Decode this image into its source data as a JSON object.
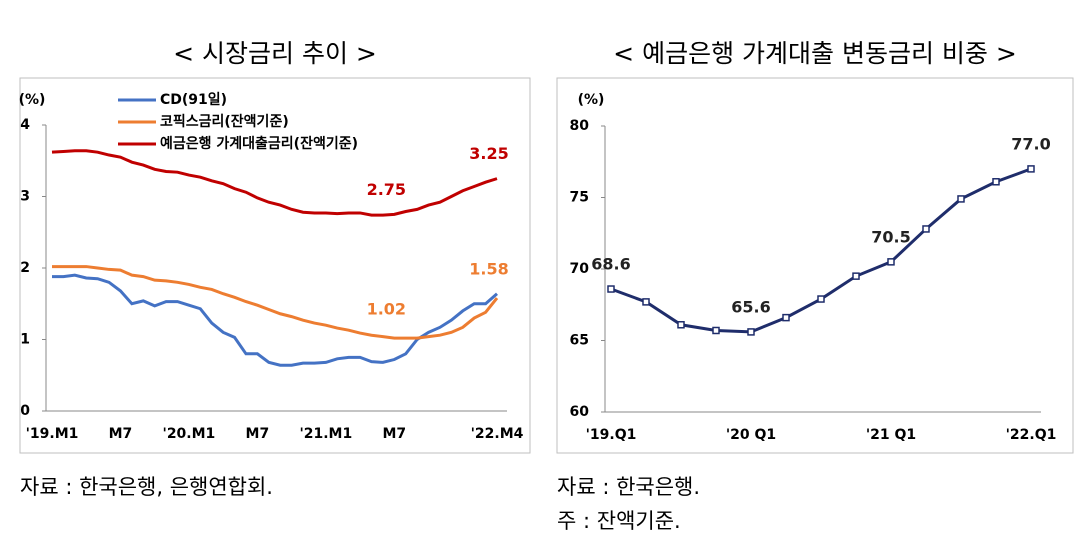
{
  "chart_data": [
    {
      "type": "line",
      "title": "< 시장금리 추이 >",
      "y_label": "(%)",
      "categories": [
        "'19.M1",
        null,
        null,
        null,
        null,
        null,
        "M7",
        null,
        null,
        null,
        null,
        null,
        "'20.M1",
        null,
        null,
        null,
        null,
        null,
        "M7",
        null,
        null,
        null,
        null,
        null,
        "'21.M1",
        null,
        null,
        null,
        null,
        null,
        "M7",
        null,
        null,
        null,
        null,
        null,
        null,
        null,
        null,
        "'22.M4"
      ],
      "series": [
        {
          "name": "CD(91일)",
          "color": "#4472c4",
          "values": [
            1.88,
            1.88,
            1.9,
            1.86,
            1.85,
            1.8,
            1.68,
            1.5,
            1.54,
            1.47,
            1.53,
            1.53,
            1.48,
            1.43,
            1.23,
            1.1,
            1.03,
            0.8,
            0.8,
            0.68,
            0.64,
            0.64,
            0.67,
            0.67,
            0.68,
            0.73,
            0.75,
            0.75,
            0.69,
            0.68,
            0.72,
            0.8,
            1.0,
            1.1,
            1.17,
            1.27,
            1.4,
            1.5,
            1.5,
            1.64
          ]
        },
        {
          "name": "코픽스금리(잔액기준)",
          "color": "#ed7d31",
          "values": [
            2.02,
            2.02,
            2.02,
            2.02,
            2.0,
            1.98,
            1.97,
            1.9,
            1.88,
            1.83,
            1.82,
            1.8,
            1.77,
            1.73,
            1.7,
            1.64,
            1.59,
            1.53,
            1.48,
            1.42,
            1.36,
            1.32,
            1.27,
            1.23,
            1.2,
            1.16,
            1.13,
            1.09,
            1.06,
            1.04,
            1.02,
            1.02,
            1.02,
            1.04,
            1.06,
            1.1,
            1.17,
            1.3,
            1.38,
            1.58
          ],
          "value_labels": [
            null,
            null,
            null,
            null,
            null,
            null,
            null,
            null,
            null,
            null,
            null,
            null,
            null,
            null,
            null,
            null,
            null,
            null,
            null,
            null,
            null,
            null,
            null,
            null,
            null,
            null,
            null,
            null,
            null,
            null,
            "1.02",
            null,
            null,
            null,
            null,
            null,
            null,
            null,
            null,
            "1.58"
          ]
        },
        {
          "name": "예금은행 가계대출금리(잔액기준)",
          "color": "#c00000",
          "values": [
            3.62,
            3.63,
            3.64,
            3.64,
            3.62,
            3.58,
            3.55,
            3.48,
            3.44,
            3.38,
            3.35,
            3.34,
            3.3,
            3.27,
            3.22,
            3.18,
            3.11,
            3.06,
            2.98,
            2.92,
            2.88,
            2.82,
            2.78,
            2.77,
            2.77,
            2.76,
            2.77,
            2.77,
            2.74,
            2.74,
            2.75,
            2.79,
            2.82,
            2.88,
            2.92,
            3.0,
            3.08,
            3.14,
            3.2,
            3.25
          ],
          "value_labels": [
            null,
            null,
            null,
            null,
            null,
            null,
            null,
            null,
            null,
            null,
            null,
            null,
            null,
            null,
            null,
            null,
            null,
            null,
            null,
            null,
            null,
            null,
            null,
            null,
            null,
            null,
            null,
            null,
            null,
            null,
            "2.75",
            null,
            null,
            null,
            null,
            null,
            null,
            null,
            null,
            "3.25"
          ]
        }
      ],
      "ylim": [
        0,
        4
      ],
      "yticks": [
        0,
        1,
        2,
        3,
        4
      ],
      "grid": false,
      "legend": "upper left",
      "notes": [
        "자료 : 한국은행, 은행연합회."
      ]
    },
    {
      "type": "line",
      "title": "< 예금은행 가계대출 변동금리 비중 >",
      "y_label": "(%)",
      "categories": [
        "'19.Q1",
        null,
        null,
        null,
        "'20 Q1",
        null,
        null,
        null,
        "'21 Q1",
        null,
        null,
        null,
        "'22.Q1"
      ],
      "values": [
        68.6,
        67.7,
        66.1,
        65.7,
        65.6,
        66.6,
        67.9,
        69.5,
        70.5,
        72.8,
        74.9,
        76.1,
        77.0
      ],
      "value_labels": [
        "68.6",
        null,
        null,
        null,
        "65.6",
        null,
        null,
        null,
        "70.5",
        null,
        null,
        null,
        "77.0"
      ],
      "color": "#1f2d6b",
      "marker": "square",
      "ylim": [
        60,
        80
      ],
      "yticks": [
        60,
        65,
        70,
        75,
        80
      ],
      "grid": false,
      "notes": [
        "자료 : 한국은행.",
        "주 : 잔액기준."
      ]
    }
  ]
}
